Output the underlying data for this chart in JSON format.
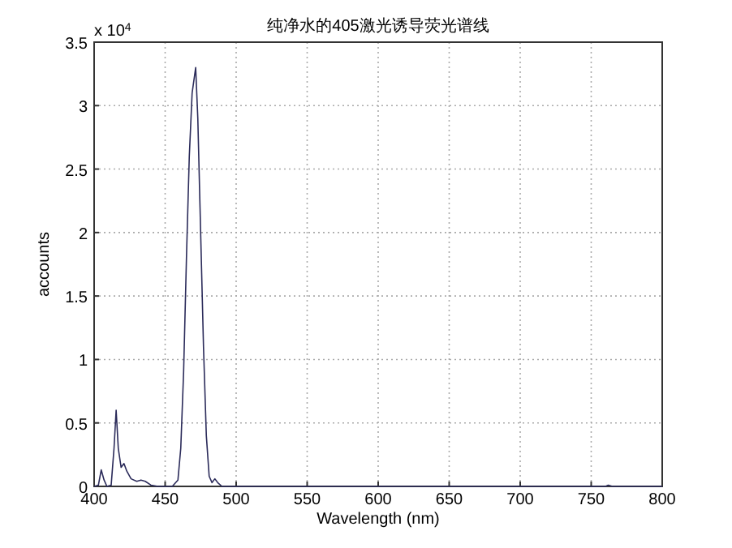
{
  "chart_data": {
    "type": "line",
    "title": "纯净水的405激光诱导荧光谱线",
    "xlabel": "Wavelength (nm)",
    "ylabel": "accounts",
    "annotations": [
      "x 10$^{4}$"
    ],
    "xlim": [
      400,
      800
    ],
    "ylim": [
      0,
      3.5
    ],
    "xticks": [
      400,
      450,
      500,
      550,
      600,
      650,
      700,
      750,
      800
    ],
    "yticks": [
      0,
      0.5,
      1,
      1.5,
      2,
      2.5,
      3,
      3.5
    ],
    "grid": true,
    "series": [
      {
        "color": "#2b2b5a",
        "x": [
          400,
          403,
          405,
          407,
          409,
          412,
          414,
          415.5,
          417,
          419,
          421,
          423,
          426,
          430,
          433,
          436,
          440,
          445,
          455,
          459,
          461,
          463,
          465,
          467,
          469,
          471.5,
          473,
          475,
          477,
          479,
          481,
          483,
          485,
          487,
          490,
          500,
          600,
          700,
          760,
          762,
          765,
          800
        ],
        "values": [
          0,
          0.01,
          0.13,
          0.05,
          0,
          0.01,
          0.3,
          0.6,
          0.3,
          0.15,
          0.18,
          0.12,
          0.06,
          0.04,
          0.05,
          0.04,
          0.01,
          0,
          0,
          0.05,
          0.3,
          0.9,
          1.8,
          2.6,
          3.1,
          3.3,
          2.9,
          2.0,
          1.1,
          0.4,
          0.08,
          0.03,
          0.06,
          0.03,
          0,
          0,
          0,
          0,
          0,
          0.01,
          0,
          0
        ]
      }
    ]
  }
}
